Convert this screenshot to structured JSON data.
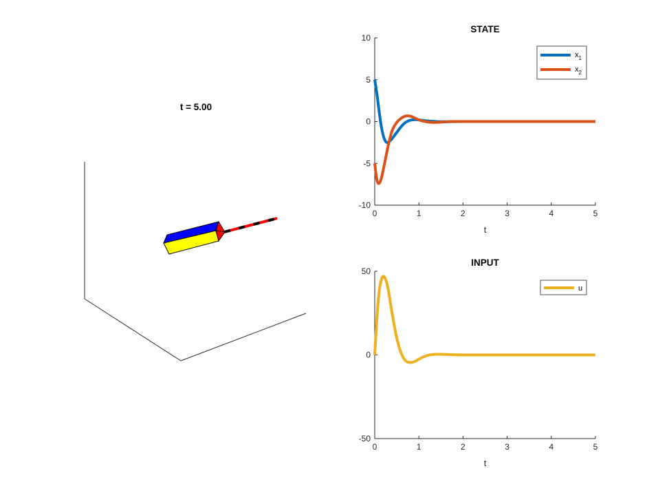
{
  "figure": {
    "scene3d": {
      "title": "t = 5.00",
      "colors": {
        "top": "#0000ff",
        "front": "#ffff00",
        "end": "#ff0000",
        "rod_dash_a": "#000000",
        "rod_dash_b": "#ff0000"
      }
    }
  },
  "chart_data": [
    {
      "type": "line",
      "title": "STATE",
      "xlabel": "t",
      "ylabel": "",
      "xlim": [
        0,
        5
      ],
      "ylim": [
        -10,
        10
      ],
      "xticks": [
        "0",
        "1",
        "2",
        "3",
        "4",
        "5"
      ],
      "yticks": [
        "-10",
        "-5",
        "0",
        "5",
        "10"
      ],
      "legend_position": "top-right",
      "series": [
        {
          "name": "x",
          "subscript": "1",
          "color": "#0072bd",
          "x": [
            0,
            0.05,
            0.1,
            0.15,
            0.2,
            0.25,
            0.3,
            0.35,
            0.4,
            0.5,
            0.6,
            0.7,
            0.8,
            0.9,
            1.0,
            1.1,
            1.2,
            1.3,
            1.4,
            1.5,
            1.6,
            1.8,
            2.0,
            2.5,
            3,
            4,
            5
          ],
          "y": [
            5.0,
            3.3,
            1.2,
            -0.6,
            -1.8,
            -2.4,
            -2.5,
            -2.3,
            -2.0,
            -1.3,
            -0.6,
            -0.1,
            0.15,
            0.22,
            0.2,
            0.13,
            0.07,
            0.03,
            0.0,
            -0.02,
            -0.02,
            -0.01,
            0.0,
            0.0,
            0.0,
            0.0,
            0.0
          ]
        },
        {
          "name": "x",
          "subscript": "2",
          "color": "#d95319",
          "x": [
            0,
            0.05,
            0.1,
            0.15,
            0.2,
            0.25,
            0.3,
            0.35,
            0.4,
            0.5,
            0.6,
            0.7,
            0.8,
            0.9,
            1.0,
            1.1,
            1.2,
            1.3,
            1.4,
            1.5,
            1.6,
            1.8,
            2.0,
            2.5,
            3,
            4,
            5
          ],
          "y": [
            -5.0,
            -7.0,
            -7.4,
            -6.8,
            -5.6,
            -4.3,
            -3.0,
            -1.9,
            -1.0,
            -0.1,
            0.4,
            0.65,
            0.65,
            0.45,
            0.2,
            0.05,
            -0.05,
            -0.1,
            -0.1,
            -0.07,
            -0.04,
            0.0,
            0.0,
            0.0,
            0.0,
            0.0,
            0.0
          ]
        }
      ]
    },
    {
      "type": "line",
      "title": "INPUT",
      "xlabel": "t",
      "ylabel": "",
      "xlim": [
        0,
        5
      ],
      "ylim": [
        -50,
        50
      ],
      "xticks": [
        "0",
        "1",
        "2",
        "3",
        "4",
        "5"
      ],
      "yticks": [
        "-50",
        "0",
        "50"
      ],
      "legend_position": "top-right",
      "series": [
        {
          "name": "u",
          "subscript": "",
          "color": "#edb120",
          "x": [
            0,
            0.05,
            0.1,
            0.15,
            0.2,
            0.25,
            0.3,
            0.35,
            0.4,
            0.5,
            0.6,
            0.7,
            0.8,
            0.9,
            1.0,
            1.1,
            1.2,
            1.3,
            1.4,
            1.5,
            1.6,
            1.8,
            2.0,
            2.2,
            2.5,
            3,
            4,
            5
          ],
          "y": [
            0,
            22,
            38,
            45,
            47,
            45,
            40,
            32,
            24,
            10,
            1,
            -3.5,
            -4.5,
            -4,
            -2.5,
            -1.2,
            -0.3,
            0.2,
            0.4,
            0.4,
            0.3,
            0.1,
            0.0,
            0.0,
            0.0,
            0.0,
            0.0,
            0.0
          ]
        }
      ]
    }
  ]
}
